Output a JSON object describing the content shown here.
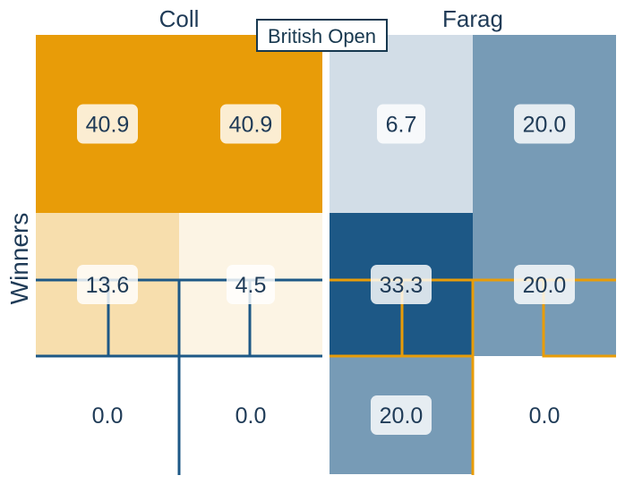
{
  "chart_data": {
    "type": "heatmap",
    "title": "British Open",
    "ylabel": "Winners",
    "panels": [
      {
        "name": "Coll",
        "values": [
          [
            40.9,
            40.9
          ],
          [
            13.6,
            4.5
          ],
          [
            0.0,
            0.0
          ]
        ],
        "colormap": "orange"
      },
      {
        "name": "Farag",
        "values": [
          [
            6.7,
            20.0
          ],
          [
            33.3,
            20.0
          ],
          [
            20.0,
            0.0
          ]
        ],
        "colormap": "blue"
      }
    ],
    "vmin": 0,
    "vmax_coll": 40.9,
    "vmax_farag": 33.3
  },
  "colors": {
    "coll_accent": "#e89c08",
    "farag_accent": "#1d5886",
    "text": "#1f3b57"
  }
}
